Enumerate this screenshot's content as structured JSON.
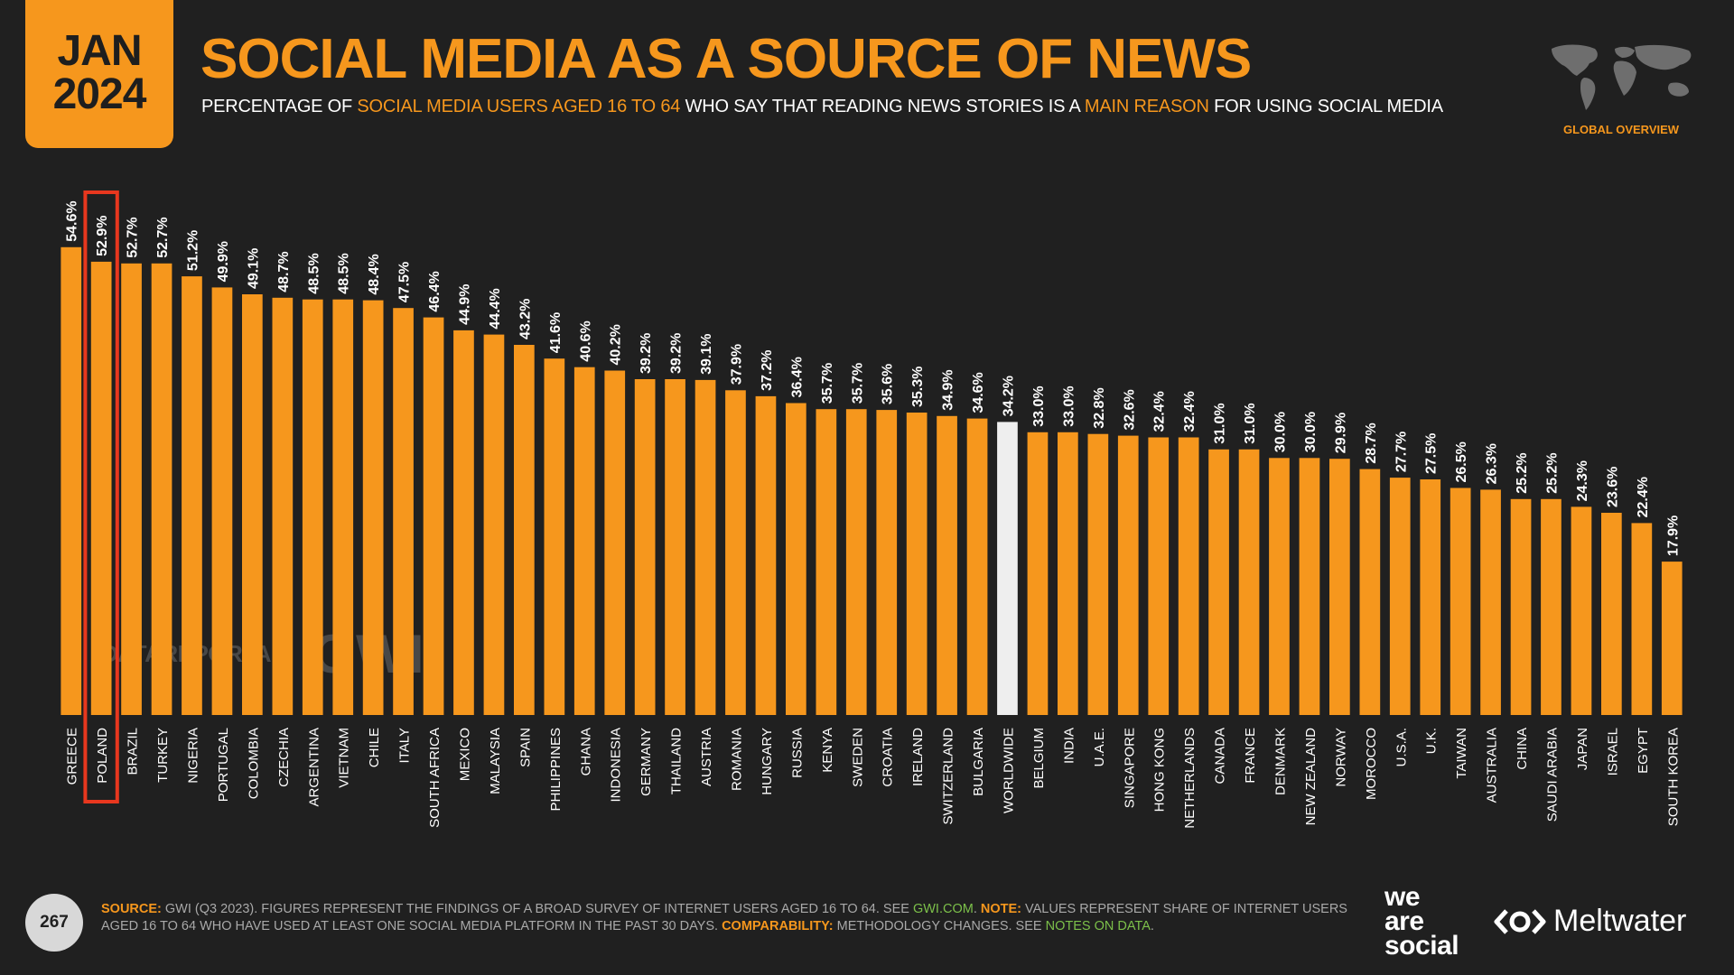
{
  "header": {
    "date_month": "JAN",
    "date_year": "2024",
    "title": "SOCIAL MEDIA AS A SOURCE OF NEWS",
    "subtitle_parts": [
      "PERCENTAGE OF ",
      "SOCIAL MEDIA USERS AGED 16 TO 64",
      " WHO SAY THAT READING NEWS STORIES IS A ",
      "MAIN REASON",
      " FOR USING SOCIAL MEDIA"
    ],
    "region_label": "GLOBAL OVERVIEW"
  },
  "chart_data": {
    "type": "bar",
    "categories": [
      "GREECE",
      "POLAND",
      "BRAZIL",
      "TURKEY",
      "NIGERIA",
      "PORTUGAL",
      "COLOMBIA",
      "CZECHIA",
      "ARGENTINA",
      "VIETNAM",
      "CHILE",
      "ITALY",
      "SOUTH AFRICA",
      "MEXICO",
      "MALAYSIA",
      "SPAIN",
      "PHILIPPINES",
      "GHANA",
      "INDONESIA",
      "GERMANY",
      "THAILAND",
      "AUSTRIA",
      "ROMANIA",
      "HUNGARY",
      "RUSSIA",
      "KENYA",
      "SWEDEN",
      "CROATIA",
      "IRELAND",
      "SWITZERLAND",
      "BULGARIA",
      "WORLDWIDE",
      "BELGIUM",
      "INDIA",
      "U.A.E.",
      "SINGAPORE",
      "HONG KONG",
      "NETHERLANDS",
      "CANADA",
      "FRANCE",
      "DENMARK",
      "NEW ZEALAND",
      "NORWAY",
      "MOROCCO",
      "U.S.A.",
      "U.K.",
      "TAIWAN",
      "AUSTRALIA",
      "CHINA",
      "SAUDI ARABIA",
      "JAPAN",
      "ISRAEL",
      "EGYPT",
      "SOUTH KOREA"
    ],
    "values": [
      54.6,
      52.9,
      52.7,
      52.7,
      51.2,
      49.9,
      49.1,
      48.7,
      48.5,
      48.5,
      48.4,
      47.5,
      46.4,
      44.9,
      44.4,
      43.2,
      41.6,
      40.6,
      40.2,
      39.2,
      39.2,
      39.1,
      37.9,
      37.2,
      36.4,
      35.7,
      35.7,
      35.6,
      35.3,
      34.9,
      34.6,
      34.2,
      33.0,
      33.0,
      32.8,
      32.6,
      32.4,
      32.4,
      31.0,
      31.0,
      30.0,
      30.0,
      29.9,
      28.7,
      27.7,
      27.5,
      26.5,
      26.3,
      25.2,
      25.2,
      24.3,
      23.6,
      22.4,
      17.9
    ],
    "value_labels": [
      "54.6%",
      "52.9%",
      "52.7%",
      "52.7%",
      "51.2%",
      "49.9%",
      "49.1%",
      "48.7%",
      "48.5%",
      "48.5%",
      "48.4%",
      "47.5%",
      "46.4%",
      "44.9%",
      "44.4%",
      "43.2%",
      "41.6%",
      "40.6%",
      "40.2%",
      "39.2%",
      "39.2%",
      "39.1%",
      "37.9%",
      "37.2%",
      "36.4%",
      "35.7%",
      "35.7%",
      "35.6%",
      "35.3%",
      "34.9%",
      "34.6%",
      "34.2%",
      "33.0%",
      "33.0%",
      "32.8%",
      "32.6%",
      "32.4%",
      "32.4%",
      "31.0%",
      "31.0%",
      "30.0%",
      "30.0%",
      "29.9%",
      "28.7%",
      "27.7%",
      "27.5%",
      "26.5%",
      "26.3%",
      "25.2%",
      "25.2%",
      "24.3%",
      "23.6%",
      "22.4%",
      "17.9%"
    ],
    "ylim": [
      0,
      55
    ],
    "highlight_category": "WORLDWIDE",
    "outlined_category": "POLAND",
    "bar_color": "#f6971d",
    "highlight_color": "#eeeeee",
    "outline_color": "#e8371e",
    "grid": false
  },
  "watermark": {
    "left": "DATAREPORTAL",
    "right": "GWI."
  },
  "footer": {
    "page_number": "267",
    "source_label": "SOURCE:",
    "source_text": " GWI (Q3 2023). FIGURES REPRESENT THE FINDINGS OF A BROAD SURVEY OF INTERNET USERS AGED 16 TO 64. SEE ",
    "source_link": "GWI.COM",
    "source_end": ". ",
    "note_label": "NOTE:",
    "note_text": " VALUES REPRESENT SHARE OF INTERNET USERS AGED 16 TO 64 WHO HAVE USED AT LEAST ONE SOCIAL MEDIA PLATFORM IN THE PAST 30 DAYS. ",
    "comparability_label": "COMPARABILITY:",
    "comparability_text": " METHODOLOGY CHANGES. SEE ",
    "comparability_link": "NOTES ON DATA",
    "comparability_end": "."
  },
  "brands": {
    "was_line1": "we",
    "was_line2": "are",
    "was_line3": "social",
    "meltwater": "Meltwater"
  },
  "colors": {
    "background": "#202020",
    "accent": "#f6971d",
    "link": "#7cc04a"
  }
}
